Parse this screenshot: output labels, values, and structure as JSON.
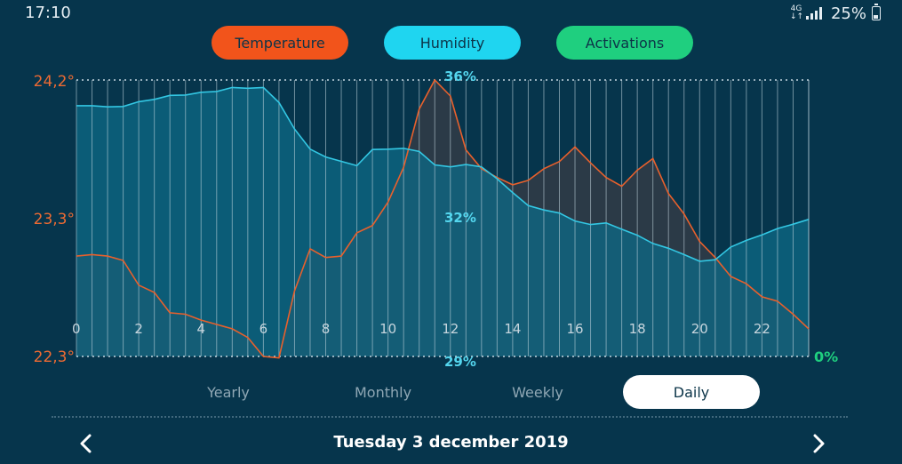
{
  "status_bar": {
    "time": "17:10",
    "network": "4G",
    "battery": "25%"
  },
  "tabs": [
    {
      "label": "Temperature",
      "color": "#f2541b"
    },
    {
      "label": "Humidity",
      "color": "#1fd5f0"
    },
    {
      "label": "Activations",
      "color": "#1fcf7f"
    }
  ],
  "periods": [
    {
      "label": "Yearly",
      "selected": false
    },
    {
      "label": "Monthly",
      "selected": false
    },
    {
      "label": "Weekly",
      "selected": false
    },
    {
      "label": "Daily",
      "selected": true
    }
  ],
  "date_label": "Tuesday 3 december 2019",
  "chart_data": {
    "type": "area",
    "x_ticks": [
      "0",
      "2",
      "4",
      "6",
      "8",
      "10",
      "12",
      "14",
      "16",
      "18",
      "20",
      "22"
    ],
    "temperature_axis": {
      "labels": [
        "24,2°",
        "23,3°",
        "22,3°"
      ],
      "min": 22.3,
      "max": 24.2
    },
    "humidity_axis": {
      "labels": [
        "36%",
        "32%",
        "29%"
      ],
      "min": 29,
      "max": 36
    },
    "activations_axis": {
      "labels": [
        "0%"
      ]
    },
    "series": [
      {
        "name": "Temperature",
        "color": "#e8602c",
        "x": [
          0,
          0.5,
          1,
          1.5,
          2,
          2.5,
          3,
          3.5,
          4,
          4.5,
          5,
          5.5,
          6,
          6.5,
          7,
          7.5,
          8,
          8.5,
          9,
          9.5,
          10,
          10.5,
          11,
          11.5,
          12,
          12.5,
          13,
          13.5,
          14,
          14.5,
          15,
          15.5,
          16,
          16.5,
          17,
          17.5,
          18,
          18.5,
          19,
          19.5,
          20,
          20.5,
          21,
          21.5,
          22,
          22.5,
          23,
          23.5
        ],
        "values": [
          22.99,
          23.0,
          22.99,
          22.96,
          22.79,
          22.74,
          22.6,
          22.59,
          22.55,
          22.52,
          22.49,
          22.43,
          22.3,
          22.29,
          22.75,
          23.04,
          22.98,
          22.99,
          23.15,
          23.2,
          23.36,
          23.6,
          24.0,
          24.2,
          24.09,
          23.72,
          23.59,
          23.53,
          23.48,
          23.51,
          23.59,
          23.64,
          23.74,
          23.63,
          23.53,
          23.47,
          23.58,
          23.66,
          23.42,
          23.28,
          23.09,
          22.98,
          22.85,
          22.8,
          22.71,
          22.68,
          22.59,
          22.49
        ]
      },
      {
        "name": "Humidity",
        "color": "#33c7e3",
        "x": [
          0,
          0.5,
          1,
          1.5,
          2,
          2.5,
          3,
          3.5,
          4,
          4.5,
          5,
          5.5,
          6,
          6.5,
          7,
          7.5,
          8,
          8.5,
          9,
          9.5,
          10,
          10.5,
          11,
          11.5,
          12,
          12.5,
          13,
          13.5,
          14,
          14.5,
          15,
          15.5,
          16,
          16.5,
          17,
          17.5,
          18,
          18.5,
          19,
          19.5,
          20,
          20.5,
          21,
          21.5,
          22,
          22.5,
          23,
          23.5
        ],
        "values": [
          35.35,
          35.35,
          35.32,
          35.33,
          35.45,
          35.51,
          35.61,
          35.62,
          35.69,
          35.71,
          35.81,
          35.79,
          35.81,
          35.43,
          34.76,
          34.25,
          34.05,
          33.94,
          33.83,
          34.24,
          34.25,
          34.27,
          34.19,
          33.85,
          33.8,
          33.86,
          33.8,
          33.5,
          33.15,
          32.82,
          32.71,
          32.63,
          32.43,
          32.34,
          32.38,
          32.22,
          32.07,
          31.86,
          31.74,
          31.58,
          31.41,
          31.45,
          31.77,
          31.94,
          32.08,
          32.24,
          32.35,
          32.47
        ]
      }
    ],
    "xlim": [
      0,
      23.5
    ]
  }
}
